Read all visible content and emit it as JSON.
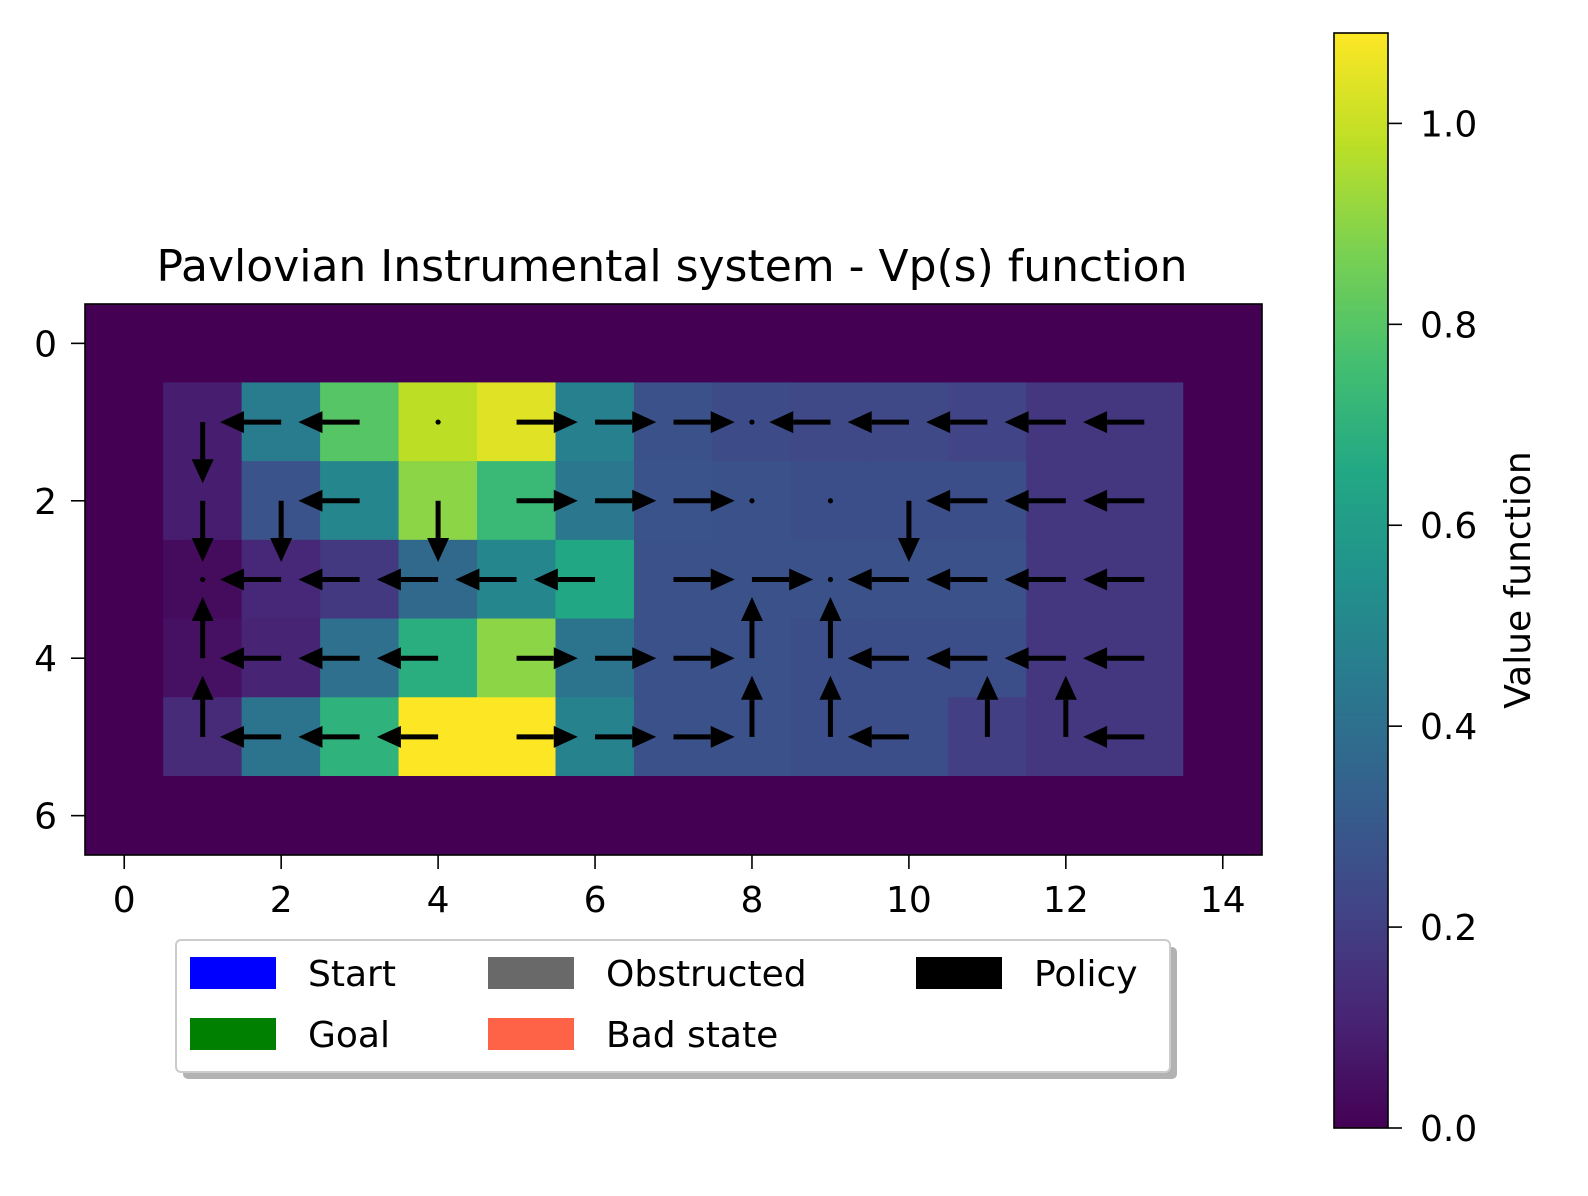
{
  "chart_data": {
    "type": "heatmap",
    "title": "Pavlovian Instrumental system - Vp(s) function",
    "x_ticks": [
      0,
      2,
      4,
      6,
      8,
      10,
      12,
      14
    ],
    "y_ticks": [
      0,
      2,
      4,
      6
    ],
    "xlim": [
      -0.5,
      14.5
    ],
    "ylim": [
      6.5,
      -0.5
    ],
    "colormap": "viridis",
    "colorbar": {
      "label": "Value function",
      "range": [
        0.0,
        1.09
      ],
      "ticks": [
        "0.0",
        "0.2",
        "0.4",
        "0.6",
        "0.8",
        "1.0"
      ]
    },
    "values": [
      [
        0,
        0,
        0,
        0,
        0,
        0,
        0,
        0,
        0,
        0,
        0,
        0,
        0,
        0,
        0
      ],
      [
        0,
        0.09,
        0.45,
        0.8,
        0.98,
        1.04,
        0.47,
        0.27,
        0.25,
        0.24,
        0.24,
        0.22,
        0.17,
        0.17,
        0
      ],
      [
        0,
        0.09,
        0.28,
        0.5,
        0.9,
        0.73,
        0.43,
        0.28,
        0.27,
        0.26,
        0.26,
        0.26,
        0.17,
        0.17,
        0
      ],
      [
        0,
        0.03,
        0.12,
        0.18,
        0.37,
        0.5,
        0.65,
        0.27,
        0.27,
        0.27,
        0.27,
        0.27,
        0.17,
        0.17,
        0
      ],
      [
        0,
        0.05,
        0.11,
        0.4,
        0.68,
        0.9,
        0.42,
        0.27,
        0.27,
        0.26,
        0.26,
        0.26,
        0.17,
        0.17,
        0
      ],
      [
        0,
        0.13,
        0.42,
        0.7,
        1.09,
        1.09,
        0.48,
        0.27,
        0.27,
        0.26,
        0.26,
        0.2,
        0.17,
        0.17,
        0
      ],
      [
        0,
        0,
        0,
        0,
        0,
        0,
        0,
        0,
        0,
        0,
        0,
        0,
        0,
        0,
        0
      ]
    ],
    "policy": [
      [
        "",
        "",
        "",
        "",
        "",
        "",
        "",
        "",
        "",
        "",
        "",
        "",
        "",
        "",
        ""
      ],
      [
        "",
        "down",
        "left",
        "left",
        "stay",
        "right",
        "right",
        "right",
        "stay",
        "left",
        "left",
        "left",
        "left",
        "left",
        ""
      ],
      [
        "",
        "down",
        "down",
        "left",
        "down",
        "right",
        "right",
        "right",
        "stay",
        "stay",
        "down",
        "left",
        "left",
        "left",
        ""
      ],
      [
        "",
        "stay",
        "left",
        "left",
        "left",
        "left",
        "left",
        "right",
        "right",
        "stay",
        "left",
        "left",
        "left",
        "left",
        ""
      ],
      [
        "",
        "up",
        "left",
        "left",
        "left",
        "right",
        "right",
        "right",
        "up",
        "up",
        "left",
        "left",
        "left",
        "left",
        ""
      ],
      [
        "",
        "up",
        "left",
        "left",
        "left",
        "right",
        "right",
        "right",
        "up",
        "up",
        "left",
        "up",
        "up",
        "left",
        ""
      ],
      [
        "",
        "",
        "",
        "",
        "",
        "",
        "",
        "",
        "",
        "",
        "",
        "",
        "",
        "",
        ""
      ]
    ],
    "legend": {
      "placement": "below",
      "entries": [
        {
          "label": "Start",
          "color": "#0000ff"
        },
        {
          "label": "Goal",
          "color": "#008000"
        },
        {
          "label": "Obstructed",
          "color": "#696969"
        },
        {
          "label": "Bad state",
          "color": "#ff6347"
        },
        {
          "label": "Policy",
          "color": "#000000"
        }
      ]
    }
  }
}
